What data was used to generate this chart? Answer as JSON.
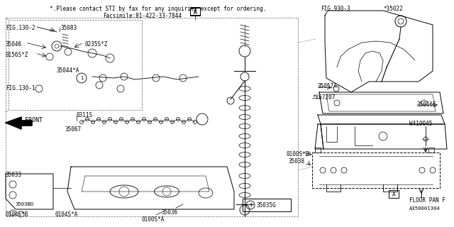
{
  "bg_color": "#ffffff",
  "line_color": "#000000",
  "text_color": "#000000",
  "title_line1": "*.Please contact STI by fax for any inquiries except for ordering.",
  "title_line2": "Facsimile:81-422-33-7844",
  "fig_label": "A350001304",
  "floor_pan": "FLOOR PAN F"
}
